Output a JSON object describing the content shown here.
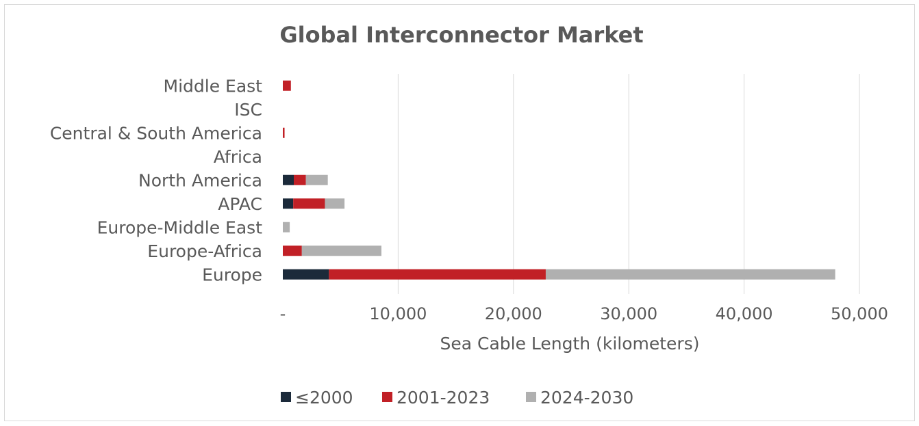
{
  "chart_data": {
    "type": "bar",
    "orientation": "horizontal",
    "stacked": true,
    "title": "Global Interconnector Market",
    "xlabel": "Sea Cable Length (kilometers)",
    "ylabel": "",
    "xlim": [
      0,
      50000
    ],
    "xticks": [
      0,
      10000,
      20000,
      30000,
      40000,
      50000
    ],
    "xtick_labels": [
      "-",
      "10,000",
      "20,000",
      "30,000",
      "40,000",
      "50,000"
    ],
    "grid": "vertical",
    "legend_position": "bottom",
    "categories": [
      "Middle East",
      "ISC",
      "Central & South America",
      "Africa",
      "North America",
      "APAC",
      "Europe-Middle East",
      "Europe-Africa",
      "Europe"
    ],
    "series": [
      {
        "name": "≤2000",
        "color": "#1b2a3a",
        "values": [
          0,
          0,
          0,
          0,
          950,
          900,
          0,
          0,
          4000
        ]
      },
      {
        "name": "2001-2023",
        "color": "#c12026",
        "values": [
          700,
          0,
          150,
          0,
          1050,
          2750,
          0,
          1650,
          18800
        ]
      },
      {
        "name": "2024-2030",
        "color": "#b0b0b0",
        "values": [
          0,
          0,
          0,
          0,
          1900,
          1700,
          600,
          6900,
          25100
        ]
      }
    ]
  }
}
